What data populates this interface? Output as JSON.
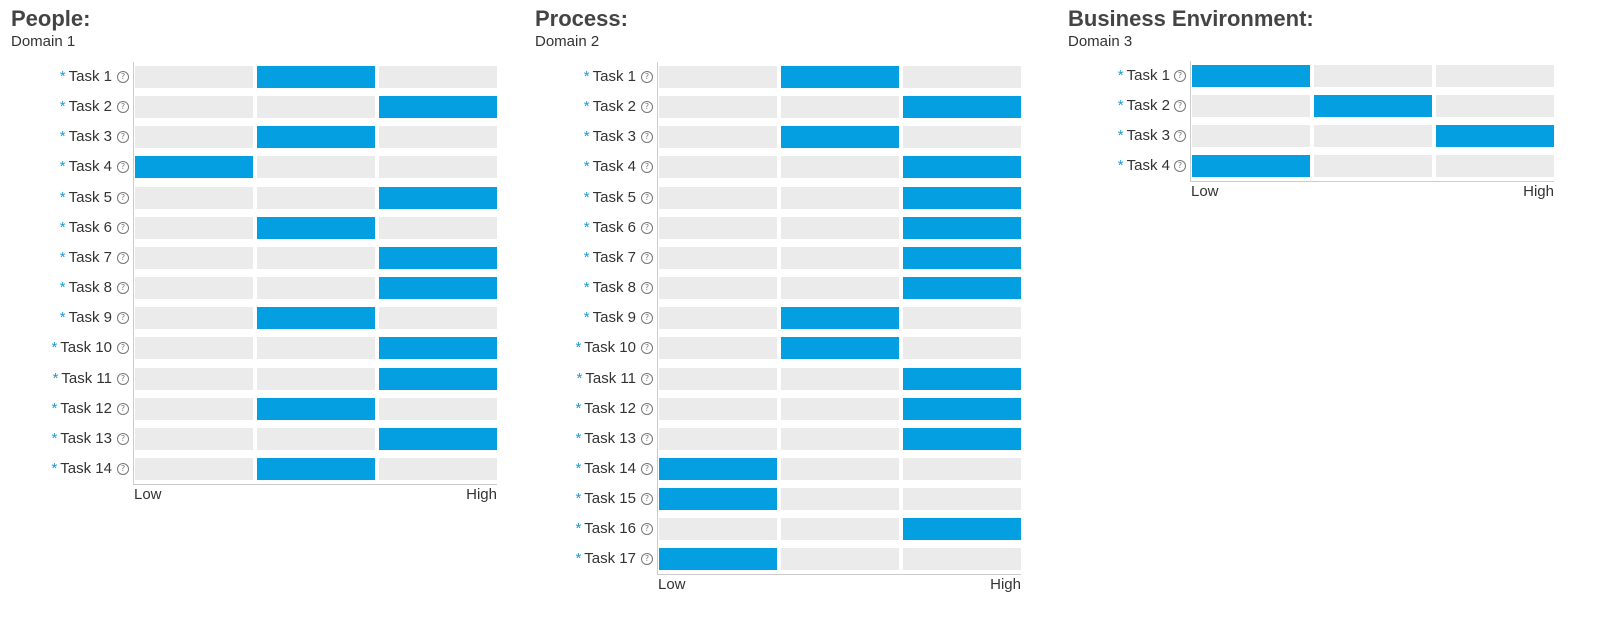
{
  "accent_color": "#039fe0",
  "track_color": "#ebebeb",
  "panels": [
    {
      "title": "People:",
      "subtitle": "Domain 1",
      "axis_low": "Low",
      "axis_high": "High",
      "tasks": [
        {
          "label": "Task 1",
          "level": 2
        },
        {
          "label": "Task 2",
          "level": 3
        },
        {
          "label": "Task 3",
          "level": 2
        },
        {
          "label": "Task 4",
          "level": 1
        },
        {
          "label": "Task 5",
          "level": 3
        },
        {
          "label": "Task 6",
          "level": 2
        },
        {
          "label": "Task 7",
          "level": 3
        },
        {
          "label": "Task 8",
          "level": 3
        },
        {
          "label": "Task 9",
          "level": 2
        },
        {
          "label": "Task 10",
          "level": 3
        },
        {
          "label": "Task 11",
          "level": 3
        },
        {
          "label": "Task 12",
          "level": 2
        },
        {
          "label": "Task 13",
          "level": 3
        },
        {
          "label": "Task 14",
          "level": 2
        }
      ]
    },
    {
      "title": "Process:",
      "subtitle": "Domain 2",
      "axis_low": "Low",
      "axis_high": "High",
      "tasks": [
        {
          "label": "Task 1",
          "level": 2
        },
        {
          "label": "Task 2",
          "level": 3
        },
        {
          "label": "Task 3",
          "level": 2
        },
        {
          "label": "Task 4",
          "level": 3
        },
        {
          "label": "Task 5",
          "level": 3
        },
        {
          "label": "Task 6",
          "level": 3
        },
        {
          "label": "Task 7",
          "level": 3
        },
        {
          "label": "Task 8",
          "level": 3
        },
        {
          "label": "Task 9",
          "level": 2
        },
        {
          "label": "Task 10",
          "level": 2
        },
        {
          "label": "Task 11",
          "level": 3
        },
        {
          "label": "Task 12",
          "level": 3
        },
        {
          "label": "Task 13",
          "level": 3
        },
        {
          "label": "Task 14",
          "level": 1
        },
        {
          "label": "Task 15",
          "level": 1
        },
        {
          "label": "Task 16",
          "level": 3
        },
        {
          "label": "Task 17",
          "level": 1
        }
      ]
    },
    {
      "title": "Business Environment:",
      "subtitle": "Domain 3",
      "axis_low": "Low",
      "axis_high": "High",
      "tasks": [
        {
          "label": "Task 1",
          "level": 1
        },
        {
          "label": "Task 2",
          "level": 2
        },
        {
          "label": "Task 3",
          "level": 3
        },
        {
          "label": "Task 4",
          "level": 1
        }
      ]
    }
  ]
}
